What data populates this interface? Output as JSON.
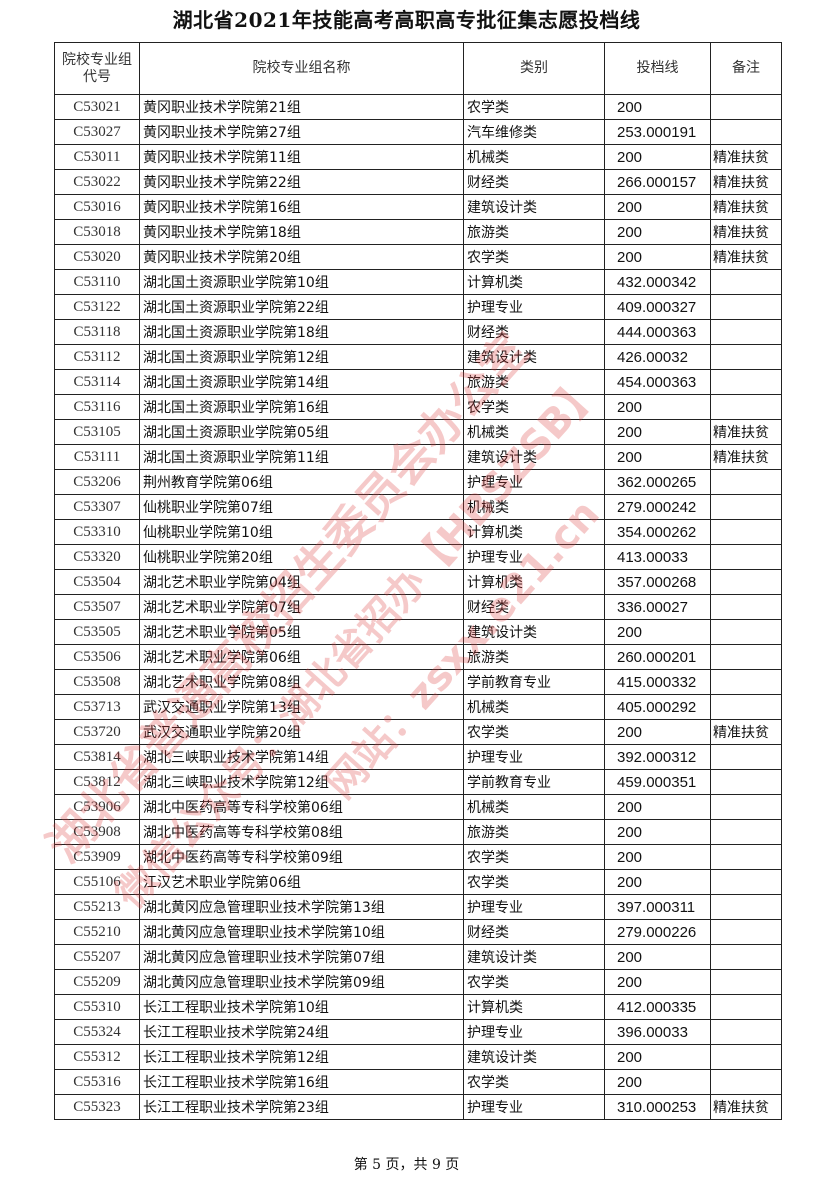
{
  "title": "湖北省2021年技能高考高职高专批征集志愿投档线",
  "table": {
    "headers": [
      "院校专业组代号",
      "院校专业组名称",
      "类别",
      "投档线",
      "备注"
    ],
    "rows": [
      [
        "C53021",
        "黄冈职业技术学院第21组",
        "农学类",
        "200",
        ""
      ],
      [
        "C53027",
        "黄冈职业技术学院第27组",
        "汽车维修类",
        "253.000191",
        ""
      ],
      [
        "C53011",
        "黄冈职业技术学院第11组",
        "机械类",
        "200",
        "精准扶贫"
      ],
      [
        "C53022",
        "黄冈职业技术学院第22组",
        "财经类",
        "266.000157",
        "精准扶贫"
      ],
      [
        "C53016",
        "黄冈职业技术学院第16组",
        "建筑设计类",
        "200",
        "精准扶贫"
      ],
      [
        "C53018",
        "黄冈职业技术学院第18组",
        "旅游类",
        "200",
        "精准扶贫"
      ],
      [
        "C53020",
        "黄冈职业技术学院第20组",
        "农学类",
        "200",
        "精准扶贫"
      ],
      [
        "C53110",
        "湖北国土资源职业学院第10组",
        "计算机类",
        "432.000342",
        ""
      ],
      [
        "C53122",
        "湖北国土资源职业学院第22组",
        "护理专业",
        "409.000327",
        ""
      ],
      [
        "C53118",
        "湖北国土资源职业学院第18组",
        "财经类",
        "444.000363",
        ""
      ],
      [
        "C53112",
        "湖北国土资源职业学院第12组",
        "建筑设计类",
        "426.00032",
        ""
      ],
      [
        "C53114",
        "湖北国土资源职业学院第14组",
        "旅游类",
        "454.000363",
        ""
      ],
      [
        "C53116",
        "湖北国土资源职业学院第16组",
        "农学类",
        "200",
        ""
      ],
      [
        "C53105",
        "湖北国土资源职业学院第05组",
        "机械类",
        "200",
        "精准扶贫"
      ],
      [
        "C53111",
        "湖北国土资源职业学院第11组",
        "建筑设计类",
        "200",
        "精准扶贫"
      ],
      [
        "C53206",
        "荆州教育学院第06组",
        "护理专业",
        "362.000265",
        ""
      ],
      [
        "C53307",
        "仙桃职业学院第07组",
        "机械类",
        "279.000242",
        ""
      ],
      [
        "C53310",
        "仙桃职业学院第10组",
        "计算机类",
        "354.000262",
        ""
      ],
      [
        "C53320",
        "仙桃职业学院第20组",
        "护理专业",
        "413.00033",
        ""
      ],
      [
        "C53504",
        "湖北艺术职业学院第04组",
        "计算机类",
        "357.000268",
        ""
      ],
      [
        "C53507",
        "湖北艺术职业学院第07组",
        "财经类",
        "336.00027",
        ""
      ],
      [
        "C53505",
        "湖北艺术职业学院第05组",
        "建筑设计类",
        "200",
        ""
      ],
      [
        "C53506",
        "湖北艺术职业学院第06组",
        "旅游类",
        "260.000201",
        ""
      ],
      [
        "C53508",
        "湖北艺术职业学院第08组",
        "学前教育专业",
        "415.000332",
        ""
      ],
      [
        "C53713",
        "武汉交通职业学院第13组",
        "机械类",
        "405.000292",
        ""
      ],
      [
        "C53720",
        "武汉交通职业学院第20组",
        "农学类",
        "200",
        "精准扶贫"
      ],
      [
        "C53814",
        "湖北三峡职业技术学院第14组",
        "护理专业",
        "392.000312",
        ""
      ],
      [
        "C53812",
        "湖北三峡职业技术学院第12组",
        "学前教育专业",
        "459.000351",
        ""
      ],
      [
        "C53906",
        "湖北中医药高等专科学校第06组",
        "机械类",
        "200",
        ""
      ],
      [
        "C53908",
        "湖北中医药高等专科学校第08组",
        "旅游类",
        "200",
        ""
      ],
      [
        "C53909",
        "湖北中医药高等专科学校第09组",
        "农学类",
        "200",
        ""
      ],
      [
        "C55106",
        "江汉艺术职业学院第06组",
        "农学类",
        "200",
        ""
      ],
      [
        "C55213",
        "湖北黄冈应急管理职业技术学院第13组",
        "护理专业",
        "397.000311",
        ""
      ],
      [
        "C55210",
        "湖北黄冈应急管理职业技术学院第10组",
        "财经类",
        "279.000226",
        ""
      ],
      [
        "C55207",
        "湖北黄冈应急管理职业技术学院第07组",
        "建筑设计类",
        "200",
        ""
      ],
      [
        "C55209",
        "湖北黄冈应急管理职业技术学院第09组",
        "农学类",
        "200",
        ""
      ],
      [
        "C55310",
        "长江工程职业技术学院第10组",
        "计算机类",
        "412.000335",
        ""
      ],
      [
        "C55324",
        "长江工程职业技术学院第24组",
        "护理专业",
        "396.00033",
        ""
      ],
      [
        "C55312",
        "长江工程职业技术学院第12组",
        "建筑设计类",
        "200",
        ""
      ],
      [
        "C55316",
        "长江工程职业技术学院第16组",
        "农学类",
        "200",
        ""
      ],
      [
        "C55323",
        "长江工程职业技术学院第23组",
        "护理专业",
        "310.000253",
        "精准扶贫"
      ]
    ]
  },
  "watermark": {
    "line1": "湖北省普通高校招生委员会办公室",
    "line2": "微信公众号：湖北省招办【HBSZSB】",
    "line3": "网站：zsxx.e21.cn",
    "color": "#dc3c3c"
  },
  "footer": "第 5 页，共 9 页"
}
